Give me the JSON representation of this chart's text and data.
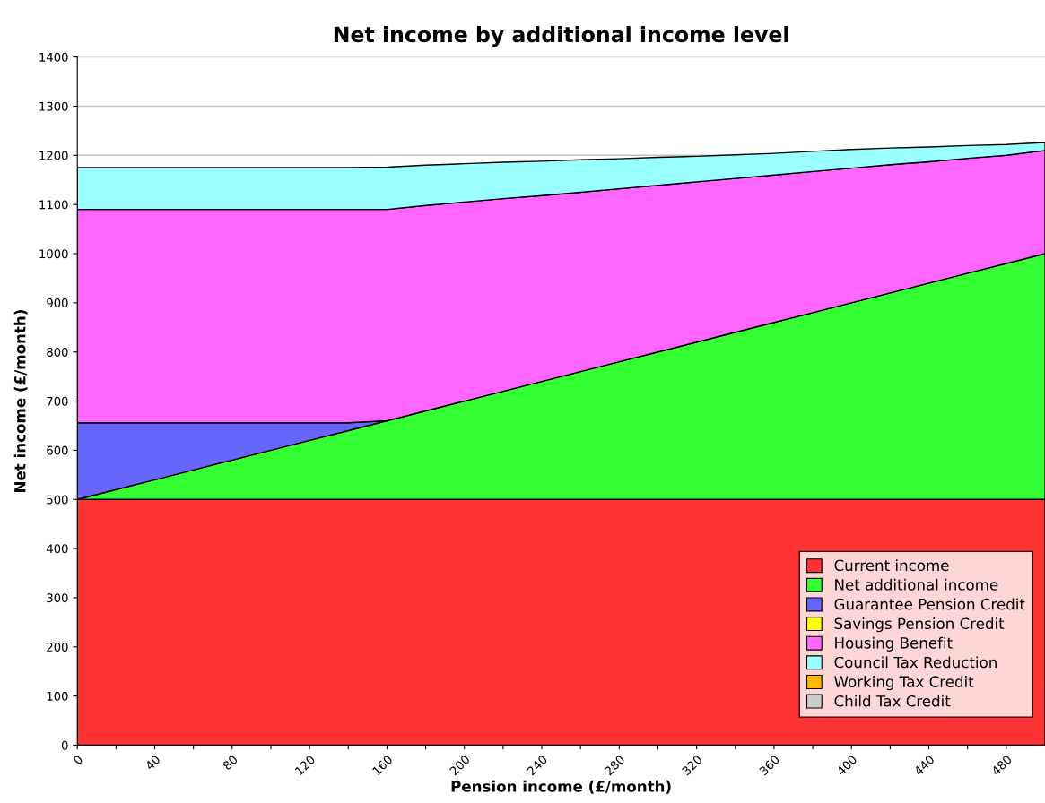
{
  "chart_data": {
    "type": "area",
    "stacked": true,
    "title": "Net income by additional income level",
    "xlabel": "Pension income (£/month)",
    "ylabel": "Net income (£/month)",
    "x": [
      0,
      20,
      40,
      60,
      80,
      100,
      120,
      140,
      160,
      180,
      200,
      220,
      240,
      260,
      280,
      300,
      320,
      340,
      360,
      380,
      400,
      420,
      440,
      460,
      480,
      500
    ],
    "series": [
      {
        "name": "Current income",
        "color": "#ff3333",
        "values": [
          500,
          500,
          500,
          500,
          500,
          500,
          500,
          500,
          500,
          500,
          500,
          500,
          500,
          500,
          500,
          500,
          500,
          500,
          500,
          500,
          500,
          500,
          500,
          500,
          500,
          500
        ]
      },
      {
        "name": "Net additional income",
        "color": "#33ff33",
        "values": [
          0,
          20,
          40,
          60,
          80,
          100,
          120,
          140,
          160,
          180,
          200,
          220,
          240,
          260,
          280,
          300,
          320,
          340,
          360,
          380,
          400,
          420,
          440,
          460,
          480,
          500
        ]
      },
      {
        "name": "Guarantee Pension Credit",
        "color": "#6666ff",
        "values": [
          156,
          136,
          116,
          96,
          76,
          56,
          36,
          16,
          0,
          null,
          null,
          null,
          null,
          null,
          null,
          null,
          null,
          null,
          null,
          null,
          null,
          null,
          null,
          null,
          null,
          null
        ]
      },
      {
        "name": "Savings Pension Credit",
        "color": "#ffff00",
        "values": [
          null,
          null,
          null,
          null,
          null,
          null,
          null,
          null,
          null,
          null,
          null,
          null,
          null,
          null,
          null,
          null,
          null,
          null,
          null,
          null,
          null,
          null,
          null,
          null,
          null,
          null
        ]
      },
      {
        "name": "Housing Benefit",
        "color": "#ff66ff",
        "values": [
          434,
          434,
          434,
          434,
          434,
          434,
          434,
          434,
          430,
          418,
          405,
          392,
          378,
          365,
          352,
          339,
          326,
          313,
          300,
          287,
          274,
          261,
          247,
          234,
          220,
          210
        ]
      },
      {
        "name": "Council Tax Reduction",
        "color": "#99ffff",
        "values": [
          85,
          85,
          85,
          85,
          85,
          85,
          85,
          85,
          86,
          82,
          78,
          74,
          70,
          66,
          61,
          57,
          52,
          48,
          44,
          41,
          38,
          34,
          30,
          26,
          22,
          16
        ]
      },
      {
        "name": "Working Tax Credit",
        "color": "#ffbb00",
        "values": [
          null,
          null,
          null,
          null,
          null,
          null,
          null,
          null,
          null,
          null,
          null,
          null,
          null,
          null,
          null,
          null,
          null,
          null,
          null,
          null,
          null,
          null,
          null,
          null,
          null,
          null
        ]
      },
      {
        "name": "Child Tax Credit",
        "color": "#cccccc",
        "values": [
          null,
          null,
          null,
          null,
          null,
          null,
          null,
          null,
          null,
          null,
          null,
          null,
          null,
          null,
          null,
          null,
          null,
          null,
          null,
          null,
          null,
          null,
          null,
          null,
          null,
          null
        ]
      }
    ],
    "xlim": [
      0,
      500
    ],
    "xticks": [
      0,
      {
        "value": 20,
        "label": null
      },
      40,
      {
        "value": 60,
        "label": null
      },
      80,
      {
        "value": 100,
        "label": null
      },
      120,
      {
        "value": 140,
        "label": null
      },
      160,
      {
        "value": 180,
        "label": null
      },
      200,
      {
        "value": 220,
        "label": null
      },
      240,
      {
        "value": 260,
        "label": null
      },
      280,
      {
        "value": 300,
        "label": null
      },
      320,
      {
        "value": 340,
        "label": null
      },
      360,
      {
        "value": 380,
        "label": null
      },
      400,
      {
        "value": 420,
        "label": null
      },
      440,
      {
        "value": 460,
        "label": null
      },
      480
    ],
    "ylim": [
      0,
      1400
    ],
    "yticks": [
      0,
      100,
      200,
      300,
      400,
      500,
      600,
      700,
      800,
      900,
      1000,
      1100,
      1200,
      1300,
      1400
    ],
    "grid": "y",
    "legend": "lower right"
  }
}
